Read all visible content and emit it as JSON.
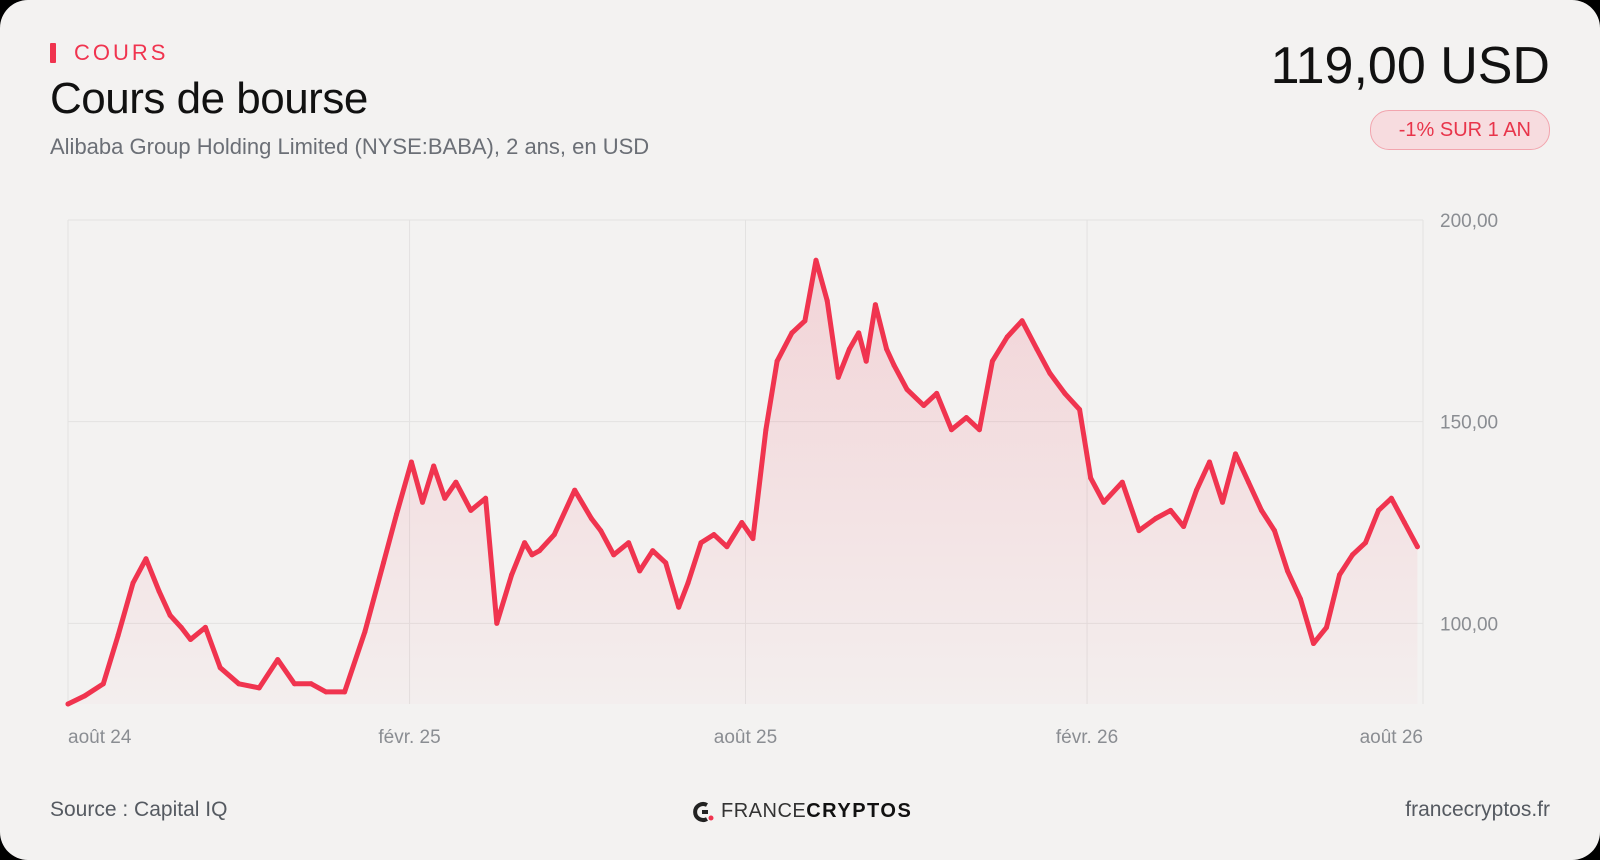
{
  "header": {
    "kicker": "COURS",
    "title": "Cours de bourse",
    "subtitle": "Alibaba Group Holding Limited (NYSE:BABA), 2 ans, en USD",
    "price": "119,00 USD",
    "change_badge": "-1% SUR 1 AN"
  },
  "footer": {
    "source": "Source : Capital IQ",
    "brand_light": "FRANCE",
    "brand_bold": "CRYPTOS",
    "site": "francecryptos.fr"
  },
  "colors": {
    "accent": "#f0344f",
    "badge_bg": "#f7dcdf",
    "grid": "#e3e2e1",
    "background": "#f3f2f1"
  },
  "chart_data": {
    "type": "area",
    "title": "Cours de bourse",
    "xlabel": "",
    "ylabel": "",
    "ylim": [
      80,
      200
    ],
    "y_ticks": [
      100,
      150,
      200
    ],
    "y_tick_labels": [
      "100,00",
      "150,00",
      "200,00"
    ],
    "x_tick_dates": [
      "2024-08",
      "2025-02",
      "2025-08",
      "2026-02",
      "2026-08"
    ],
    "x_tick_labels": [
      "août 24",
      "févr. 25",
      "août 25",
      "févr. 26",
      "août 26"
    ],
    "x_range": [
      "2024-08",
      "2026-08"
    ],
    "grid": true,
    "series": [
      {
        "x": [
          "2024-08-01",
          "2024-08-10",
          "2024-08-20",
          "2024-08-28",
          "2024-09-05",
          "2024-09-12",
          "2024-09-19",
          "2024-09-25",
          "2024-10-01",
          "2024-10-06",
          "2024-10-14",
          "2024-10-22",
          "2024-11-01",
          "2024-11-12",
          "2024-11-22",
          "2024-12-01",
          "2024-12-10",
          "2024-12-18",
          "2024-12-28",
          "2025-01-08",
          "2025-01-18",
          "2025-01-25",
          "2025-02-02",
          "2025-02-08",
          "2025-02-14",
          "2025-02-20",
          "2025-02-26",
          "2025-03-06",
          "2025-03-14",
          "2025-03-20",
          "2025-03-28",
          "2025-04-04",
          "2025-04-08",
          "2025-04-12",
          "2025-04-20",
          "2025-05-01",
          "2025-05-10",
          "2025-05-15",
          "2025-05-22",
          "2025-05-30",
          "2025-06-05",
          "2025-06-12",
          "2025-06-19",
          "2025-06-26",
          "2025-07-01",
          "2025-07-08",
          "2025-07-15",
          "2025-07-22",
          "2025-07-30",
          "2025-08-05",
          "2025-08-12",
          "2025-08-18",
          "2025-08-26",
          "2025-09-02",
          "2025-09-08",
          "2025-09-14",
          "2025-09-20",
          "2025-09-26",
          "2025-10-01",
          "2025-10-05",
          "2025-10-10",
          "2025-10-16",
          "2025-10-20",
          "2025-10-27",
          "2025-11-05",
          "2025-11-12",
          "2025-11-20",
          "2025-11-28",
          "2025-12-05",
          "2025-12-12",
          "2025-12-20",
          "2025-12-28",
          "2026-01-05",
          "2026-01-12",
          "2026-01-20",
          "2026-01-28",
          "2026-02-03",
          "2026-02-10",
          "2026-02-20",
          "2026-03-01",
          "2026-03-10",
          "2026-03-18",
          "2026-03-25",
          "2026-04-01",
          "2026-04-08",
          "2026-04-15",
          "2026-04-22",
          "2026-04-29",
          "2026-05-06",
          "2026-05-13",
          "2026-05-20",
          "2026-05-27",
          "2026-06-03",
          "2026-06-10",
          "2026-06-17",
          "2026-06-24",
          "2026-07-01",
          "2026-07-08",
          "2026-07-15",
          "2026-07-22",
          "2026-07-29"
        ],
        "values": [
          80,
          82,
          85,
          97,
          110,
          116,
          108,
          102,
          99,
          96,
          99,
          89,
          85,
          84,
          91,
          85,
          85,
          83,
          83,
          98,
          115,
          127,
          140,
          130,
          139,
          131,
          135,
          128,
          131,
          100,
          112,
          120,
          117,
          118,
          122,
          133,
          126,
          123,
          117,
          120,
          113,
          118,
          115,
          104,
          110,
          120,
          122,
          119,
          125,
          121,
          148,
          165,
          172,
          175,
          190,
          180,
          161,
          168,
          172,
          165,
          179,
          168,
          164,
          158,
          154,
          157,
          148,
          151,
          148,
          165,
          171,
          175,
          168,
          162,
          157,
          153,
          136,
          130,
          135,
          123,
          126,
          128,
          124,
          133,
          140,
          130,
          142,
          135,
          128,
          123,
          113,
          106,
          95,
          99,
          112,
          117,
          120,
          128,
          131,
          125,
          119
        ]
      }
    ]
  }
}
